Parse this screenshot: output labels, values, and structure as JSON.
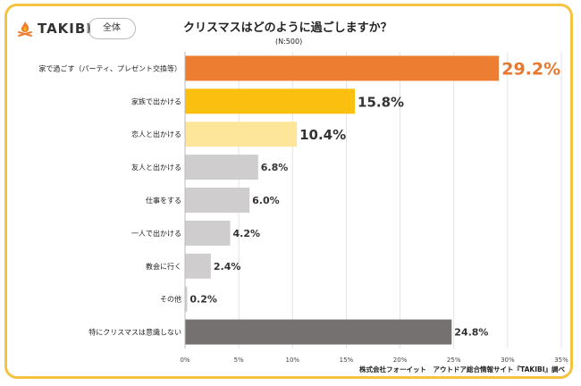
{
  "header": {
    "logo_text": "TAKIBI",
    "logo_icon": "campfire-icon",
    "badge": "全体",
    "title": "クリスマスはどのように過ごしますか？",
    "sample_size": "(N:500)"
  },
  "footer": {
    "source": "株式会社フォーイット　アウトドア総合情報サイト『TAKIBI』調べ"
  },
  "colors": {
    "frame": "#f5c242",
    "accent_orange": "#ed7d31",
    "label_orange": "#e8782d"
  },
  "chart_data": {
    "type": "bar",
    "orientation": "horizontal",
    "categories": [
      "家で過ごす（パーティ、プレゼント交換等）",
      "家族で出かける",
      "恋人と出かける",
      "友人と出かける",
      "仕事をする",
      "一人で出かける",
      "教会に行く",
      "その他",
      "特にクリスマスは意識しない"
    ],
    "values": [
      29.2,
      15.8,
      10.4,
      6.8,
      6.0,
      4.2,
      2.4,
      0.2,
      24.8
    ],
    "value_labels": [
      "29.2%",
      "15.8%",
      "10.4%",
      "6.8%",
      "6.0%",
      "4.2%",
      "2.4%",
      "0.2%",
      "24.8%"
    ],
    "bar_colors": [
      "#ed7d31",
      "#fbbf0f",
      "#fde69a",
      "#cfcdcd",
      "#cfcdcd",
      "#cfcdcd",
      "#cfcdcd",
      "#cfcdcd",
      "#767171"
    ],
    "xlim": [
      0,
      35
    ],
    "x_ticks": [
      0,
      5,
      10,
      15,
      20,
      25,
      30,
      35
    ],
    "x_tick_labels": [
      "0%",
      "5%",
      "10%",
      "15%",
      "20%",
      "25%",
      "30%",
      "35%"
    ],
    "grid": true,
    "legend": "none"
  }
}
